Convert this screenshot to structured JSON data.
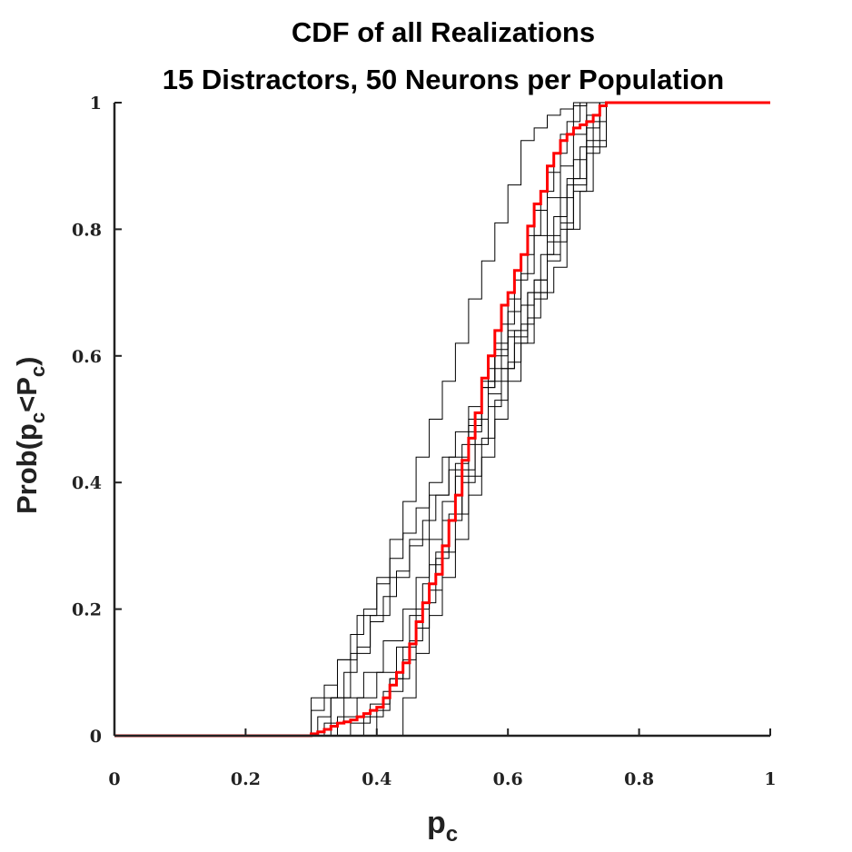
{
  "chart_data": {
    "type": "line",
    "title": "CDF of all Realizations",
    "subtitle": "15 Distractors, 50 Neurons per Population",
    "xlabel": {
      "main": "p",
      "sub": "c"
    },
    "ylabel": {
      "prefix": "Prob(p",
      "sub1": "c",
      "mid": "<P",
      "sub2": "c",
      "suffix": ")"
    },
    "xlim": [
      0,
      1
    ],
    "ylim": [
      0,
      1
    ],
    "xticks": [
      0,
      0.2,
      0.4,
      0.6,
      0.8,
      1
    ],
    "yticks": [
      0,
      0.2,
      0.4,
      0.6,
      0.8,
      1
    ],
    "xtick_labels": [
      "0",
      "0.2",
      "0.4",
      "0.6",
      "0.8",
      "1"
    ],
    "ytick_labels": [
      "0",
      "0.2",
      "0.4",
      "0.6",
      "0.8",
      "1"
    ],
    "grid": false,
    "colors": {
      "realizations": "#000000",
      "mean": "#ff0000",
      "axes": "#222222"
    },
    "realizations": [
      {
        "x": [
          0.3,
          0.32,
          0.34,
          0.36,
          0.38,
          0.4,
          0.42,
          0.44,
          0.46,
          0.48,
          0.5,
          0.52,
          0.54,
          0.56,
          0.58,
          0.6,
          0.62,
          0.64,
          0.66,
          0.68,
          0.7,
          0.72,
          0.74
        ],
        "y": [
          0.04,
          0.08,
          0.12,
          0.16,
          0.2,
          0.24,
          0.28,
          0.32,
          0.36,
          0.4,
          0.44,
          0.48,
          0.52,
          0.56,
          0.6,
          0.64,
          0.68,
          0.72,
          0.76,
          0.8,
          0.86,
          0.92,
          1.0
        ]
      },
      {
        "x": [
          0.31,
          0.33,
          0.35,
          0.37,
          0.39,
          0.41,
          0.43,
          0.45,
          0.47,
          0.49,
          0.51,
          0.53,
          0.55,
          0.57,
          0.59,
          0.61,
          0.63,
          0.65,
          0.67,
          0.69,
          0.71,
          0.73,
          0.75
        ],
        "y": [
          0.03,
          0.06,
          0.1,
          0.14,
          0.18,
          0.22,
          0.26,
          0.3,
          0.34,
          0.38,
          0.42,
          0.46,
          0.5,
          0.54,
          0.58,
          0.62,
          0.66,
          0.7,
          0.74,
          0.8,
          0.86,
          0.93,
          1.0
        ]
      },
      {
        "x": [
          0.3,
          0.34,
          0.37,
          0.4,
          0.42,
          0.44,
          0.46,
          0.48,
          0.5,
          0.52,
          0.54,
          0.56,
          0.58,
          0.6,
          0.62,
          0.64,
          0.66,
          0.68,
          0.7,
          0.72
        ],
        "y": [
          0.06,
          0.12,
          0.19,
          0.25,
          0.31,
          0.37,
          0.44,
          0.5,
          0.56,
          0.62,
          0.69,
          0.75,
          0.81,
          0.87,
          0.94,
          0.96,
          0.98,
          0.99,
          0.995,
          1.0
        ]
      },
      {
        "x": [
          0.32,
          0.35,
          0.38,
          0.41,
          0.44,
          0.46,
          0.48,
          0.5,
          0.52,
          0.54,
          0.56,
          0.58,
          0.6,
          0.62,
          0.64,
          0.66,
          0.68,
          0.7,
          0.72,
          0.74
        ],
        "y": [
          0.02,
          0.06,
          0.1,
          0.15,
          0.2,
          0.25,
          0.31,
          0.37,
          0.43,
          0.49,
          0.55,
          0.61,
          0.67,
          0.73,
          0.79,
          0.85,
          0.9,
          0.95,
          0.98,
          1.0
        ]
      },
      {
        "x": [
          0.34,
          0.37,
          0.4,
          0.43,
          0.45,
          0.47,
          0.49,
          0.51,
          0.53,
          0.55,
          0.57,
          0.59,
          0.61,
          0.63,
          0.65,
          0.67,
          0.69,
          0.71,
          0.73,
          0.75
        ],
        "y": [
          0.03,
          0.06,
          0.1,
          0.14,
          0.19,
          0.24,
          0.29,
          0.34,
          0.4,
          0.46,
          0.52,
          0.58,
          0.64,
          0.7,
          0.76,
          0.82,
          0.88,
          0.93,
          0.97,
          1.0
        ]
      },
      {
        "x": [
          0.36,
          0.39,
          0.42,
          0.45,
          0.47,
          0.49,
          0.51,
          0.53,
          0.55,
          0.57,
          0.59,
          0.61,
          0.63,
          0.65,
          0.67,
          0.69,
          0.71
        ],
        "y": [
          0.02,
          0.05,
          0.09,
          0.15,
          0.21,
          0.28,
          0.35,
          0.42,
          0.5,
          0.58,
          0.65,
          0.72,
          0.79,
          0.86,
          0.92,
          0.97,
          1.0
        ]
      },
      {
        "x": [
          0.38,
          0.41,
          0.44,
          0.46,
          0.48,
          0.5,
          0.52,
          0.54,
          0.56,
          0.58,
          0.6,
          0.62,
          0.64,
          0.66,
          0.68,
          0.7,
          0.72,
          0.74
        ],
        "y": [
          0.03,
          0.07,
          0.12,
          0.17,
          0.23,
          0.29,
          0.35,
          0.41,
          0.47,
          0.53,
          0.59,
          0.65,
          0.72,
          0.79,
          0.85,
          0.91,
          0.96,
          1.0
        ]
      },
      {
        "x": [
          0.4,
          0.42,
          0.44,
          0.46,
          0.48,
          0.5,
          0.52,
          0.54,
          0.56,
          0.58,
          0.6,
          0.62,
          0.64,
          0.66,
          0.68,
          0.7
        ],
        "y": [
          0.04,
          0.09,
          0.14,
          0.2,
          0.27,
          0.34,
          0.41,
          0.48,
          0.55,
          0.62,
          0.69,
          0.76,
          0.83,
          0.89,
          0.95,
          1.0
        ]
      },
      {
        "x": [
          0.33,
          0.36,
          0.39,
          0.42,
          0.45,
          0.48,
          0.51,
          0.54,
          0.57,
          0.6,
          0.63,
          0.66,
          0.69,
          0.72
        ],
        "y": [
          0.06,
          0.13,
          0.19,
          0.25,
          0.31,
          0.38,
          0.44,
          0.5,
          0.56,
          0.63,
          0.7,
          0.78,
          0.87,
          1.0
        ]
      },
      {
        "x": [
          0.44,
          0.46,
          0.48,
          0.5,
          0.52,
          0.54,
          0.56,
          0.58,
          0.6,
          0.62,
          0.64,
          0.66,
          0.68,
          0.7,
          0.72,
          0.75
        ],
        "y": [
          0.06,
          0.13,
          0.19,
          0.25,
          0.31,
          0.38,
          0.44,
          0.5,
          0.56,
          0.62,
          0.69,
          0.75,
          0.81,
          0.88,
          0.94,
          1.0
        ]
      }
    ],
    "mean_cdf": {
      "name": "",
      "x": [
        0.3,
        0.31,
        0.32,
        0.33,
        0.34,
        0.35,
        0.36,
        0.37,
        0.38,
        0.39,
        0.4,
        0.41,
        0.42,
        0.43,
        0.44,
        0.45,
        0.46,
        0.47,
        0.48,
        0.49,
        0.5,
        0.51,
        0.52,
        0.53,
        0.54,
        0.55,
        0.56,
        0.57,
        0.58,
        0.59,
        0.6,
        0.61,
        0.62,
        0.63,
        0.64,
        0.65,
        0.66,
        0.67,
        0.68,
        0.69,
        0.7,
        0.71,
        0.72,
        0.73,
        0.74,
        0.75
      ],
      "y": [
        0.003,
        0.006,
        0.01,
        0.015,
        0.02,
        0.022,
        0.025,
        0.03,
        0.035,
        0.04,
        0.045,
        0.06,
        0.08,
        0.1,
        0.115,
        0.145,
        0.18,
        0.21,
        0.24,
        0.255,
        0.3,
        0.34,
        0.38,
        0.435,
        0.47,
        0.51,
        0.565,
        0.6,
        0.64,
        0.68,
        0.7,
        0.735,
        0.76,
        0.805,
        0.84,
        0.86,
        0.9,
        0.92,
        0.94,
        0.95,
        0.96,
        0.965,
        0.97,
        0.98,
        0.995,
        1.0
      ]
    }
  }
}
